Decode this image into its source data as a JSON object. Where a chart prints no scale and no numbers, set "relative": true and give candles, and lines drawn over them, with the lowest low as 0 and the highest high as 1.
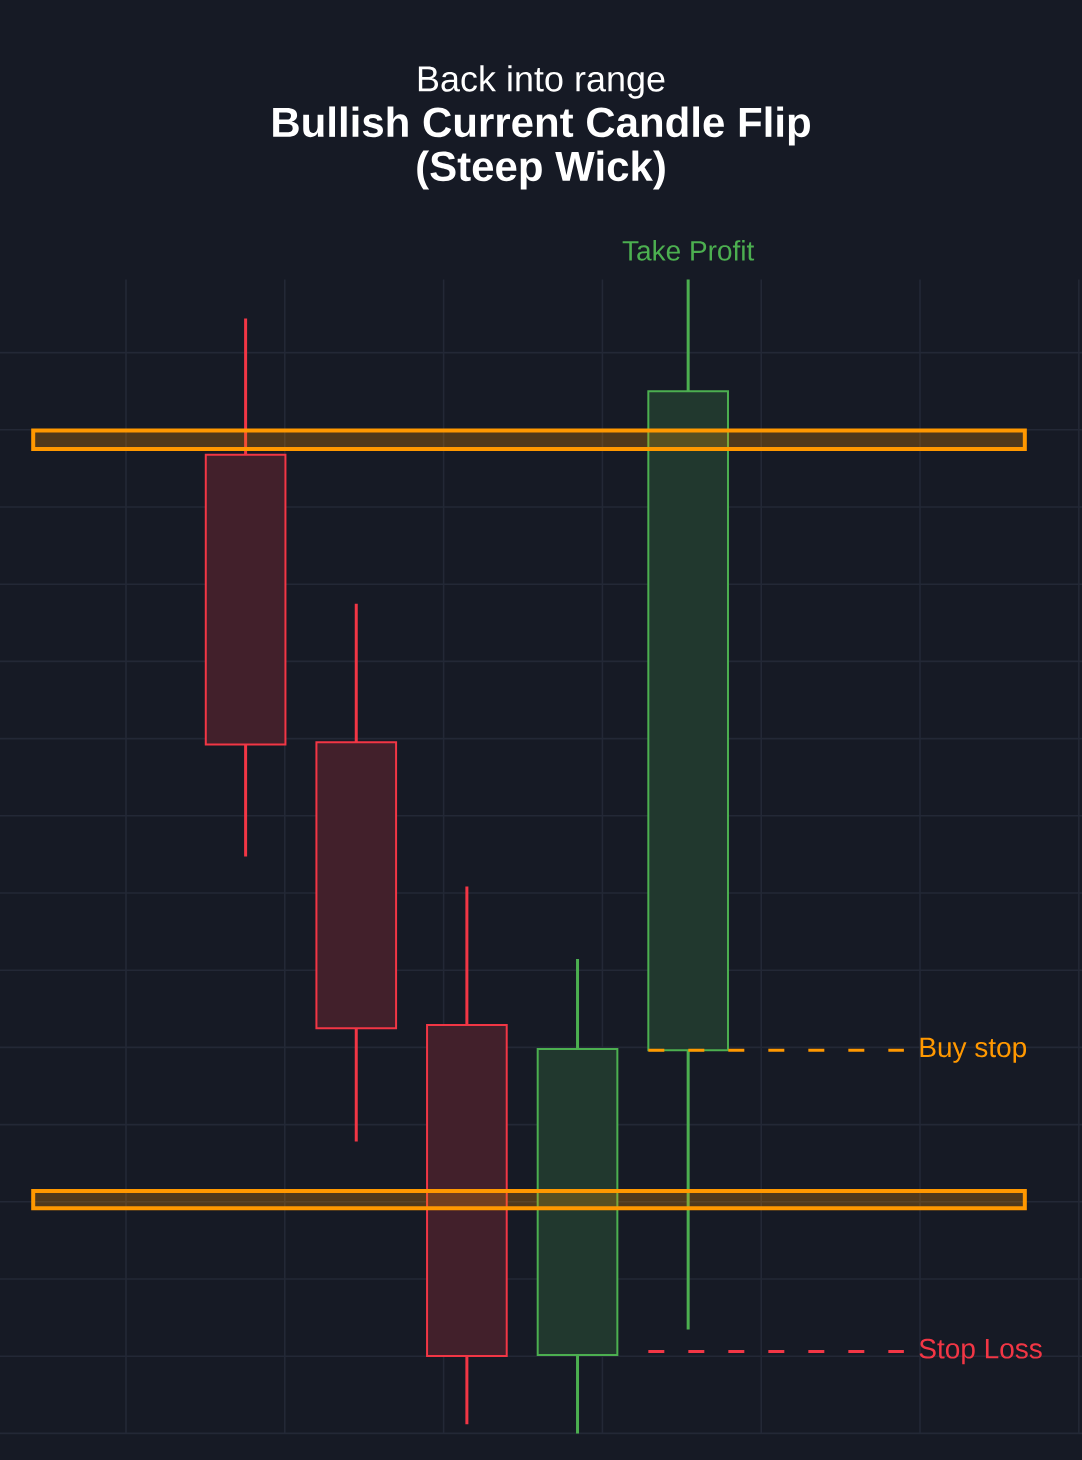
{
  "chart_data": {
    "type": "candlestick",
    "title": "Bullish Current Candle Flip (Steep Wick)",
    "subtitle": "Back into range",
    "categories": [
      null,
      null,
      null,
      null,
      null
    ],
    "ohlc": [
      [
        0.848,
        0.966,
        0.5,
        0.597
      ],
      [
        0.599,
        0.719,
        0.253,
        0.351
      ],
      [
        0.354,
        0.474,
        0.008,
        0.067
      ],
      [
        0.068,
        0.411,
        0,
        0.333
      ],
      [
        0.332,
        1,
        0.09,
        0.903
      ]
    ],
    "colors": [
      "#f23645",
      "#f23645",
      "#f23645",
      "#4caf50",
      "#4caf50"
    ],
    "relative": true,
    "grid": true,
    "bands": [
      {
        "axis": "y",
        "from": 0.853,
        "to": 0.869,
        "color": "#ff9800"
      },
      {
        "axis": "y",
        "from": 0.195,
        "to": 0.21,
        "color": "#ff9800"
      }
    ],
    "ref_lines": [
      {
        "axis": "y",
        "value": 0.332,
        "label": "Buy stop",
        "color": "#ff9800",
        "line_style": "dashed"
      },
      {
        "axis": "y",
        "value": 0.071,
        "label": "Stop Loss",
        "color": "#f23645",
        "line_style": "dashed"
      }
    ],
    "annotations": [
      {
        "text": "Take Profit",
        "y": 1
      }
    ]
  }
}
